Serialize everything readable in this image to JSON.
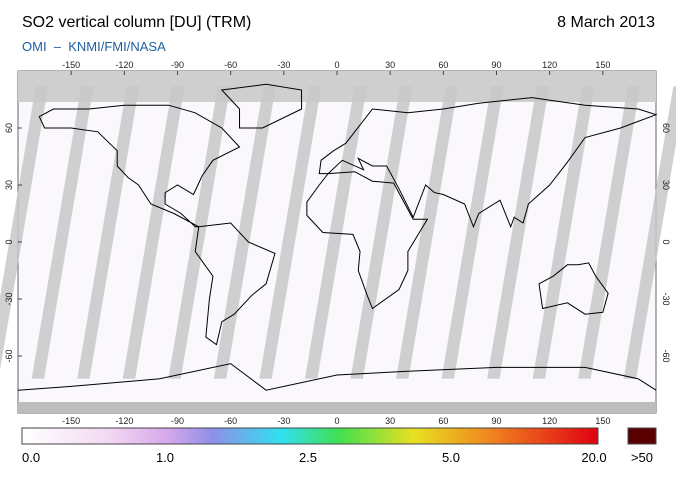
{
  "header": {
    "title": "SO2 vertical column [DU] (TRM)",
    "date": "8 March 2013",
    "subtitle": "OMI  –  KNMI/FMI/NASA"
  },
  "map": {
    "lon_ticks": [
      -150,
      -120,
      -90,
      -60,
      -30,
      0,
      30,
      60,
      90,
      120,
      150
    ],
    "lat_ticks": [
      60,
      30,
      0,
      -30,
      -60
    ]
  },
  "colorbar": {
    "labels": [
      "0.0",
      "1.0",
      "2.5",
      "5.0",
      "20.0"
    ],
    "overflow": ">50"
  }
}
